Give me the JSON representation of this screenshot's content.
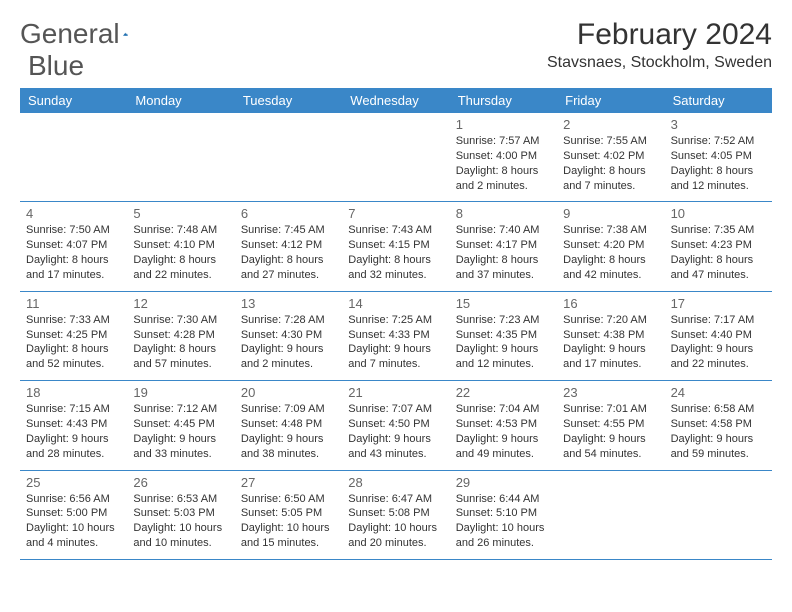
{
  "logo": {
    "word1": "General",
    "word2": "Blue"
  },
  "colors": {
    "header_bg": "#3a87c8",
    "header_text": "#ffffff",
    "divider": "#3a87c8",
    "logo_blue": "#1f6fb0",
    "text": "#333333",
    "daynum": "#666666",
    "background": "#ffffff"
  },
  "title": "February 2024",
  "location": "Stavsnaes, Stockholm, Sweden",
  "day_names": [
    "Sunday",
    "Monday",
    "Tuesday",
    "Wednesday",
    "Thursday",
    "Friday",
    "Saturday"
  ],
  "fonts": {
    "title_size": 30,
    "location_size": 16,
    "header_size": 13,
    "daynum_size": 13,
    "body_size": 11
  },
  "weeks": [
    [
      null,
      null,
      null,
      null,
      {
        "n": "1",
        "sunrise": "7:57 AM",
        "sunset": "4:00 PM",
        "dayl1": "Daylight: 8 hours",
        "dayl2": "and 2 minutes."
      },
      {
        "n": "2",
        "sunrise": "7:55 AM",
        "sunset": "4:02 PM",
        "dayl1": "Daylight: 8 hours",
        "dayl2": "and 7 minutes."
      },
      {
        "n": "3",
        "sunrise": "7:52 AM",
        "sunset": "4:05 PM",
        "dayl1": "Daylight: 8 hours",
        "dayl2": "and 12 minutes."
      }
    ],
    [
      {
        "n": "4",
        "sunrise": "7:50 AM",
        "sunset": "4:07 PM",
        "dayl1": "Daylight: 8 hours",
        "dayl2": "and 17 minutes."
      },
      {
        "n": "5",
        "sunrise": "7:48 AM",
        "sunset": "4:10 PM",
        "dayl1": "Daylight: 8 hours",
        "dayl2": "and 22 minutes."
      },
      {
        "n": "6",
        "sunrise": "7:45 AM",
        "sunset": "4:12 PM",
        "dayl1": "Daylight: 8 hours",
        "dayl2": "and 27 minutes."
      },
      {
        "n": "7",
        "sunrise": "7:43 AM",
        "sunset": "4:15 PM",
        "dayl1": "Daylight: 8 hours",
        "dayl2": "and 32 minutes."
      },
      {
        "n": "8",
        "sunrise": "7:40 AM",
        "sunset": "4:17 PM",
        "dayl1": "Daylight: 8 hours",
        "dayl2": "and 37 minutes."
      },
      {
        "n": "9",
        "sunrise": "7:38 AM",
        "sunset": "4:20 PM",
        "dayl1": "Daylight: 8 hours",
        "dayl2": "and 42 minutes."
      },
      {
        "n": "10",
        "sunrise": "7:35 AM",
        "sunset": "4:23 PM",
        "dayl1": "Daylight: 8 hours",
        "dayl2": "and 47 minutes."
      }
    ],
    [
      {
        "n": "11",
        "sunrise": "7:33 AM",
        "sunset": "4:25 PM",
        "dayl1": "Daylight: 8 hours",
        "dayl2": "and 52 minutes."
      },
      {
        "n": "12",
        "sunrise": "7:30 AM",
        "sunset": "4:28 PM",
        "dayl1": "Daylight: 8 hours",
        "dayl2": "and 57 minutes."
      },
      {
        "n": "13",
        "sunrise": "7:28 AM",
        "sunset": "4:30 PM",
        "dayl1": "Daylight: 9 hours",
        "dayl2": "and 2 minutes."
      },
      {
        "n": "14",
        "sunrise": "7:25 AM",
        "sunset": "4:33 PM",
        "dayl1": "Daylight: 9 hours",
        "dayl2": "and 7 minutes."
      },
      {
        "n": "15",
        "sunrise": "7:23 AM",
        "sunset": "4:35 PM",
        "dayl1": "Daylight: 9 hours",
        "dayl2": "and 12 minutes."
      },
      {
        "n": "16",
        "sunrise": "7:20 AM",
        "sunset": "4:38 PM",
        "dayl1": "Daylight: 9 hours",
        "dayl2": "and 17 minutes."
      },
      {
        "n": "17",
        "sunrise": "7:17 AM",
        "sunset": "4:40 PM",
        "dayl1": "Daylight: 9 hours",
        "dayl2": "and 22 minutes."
      }
    ],
    [
      {
        "n": "18",
        "sunrise": "7:15 AM",
        "sunset": "4:43 PM",
        "dayl1": "Daylight: 9 hours",
        "dayl2": "and 28 minutes."
      },
      {
        "n": "19",
        "sunrise": "7:12 AM",
        "sunset": "4:45 PM",
        "dayl1": "Daylight: 9 hours",
        "dayl2": "and 33 minutes."
      },
      {
        "n": "20",
        "sunrise": "7:09 AM",
        "sunset": "4:48 PM",
        "dayl1": "Daylight: 9 hours",
        "dayl2": "and 38 minutes."
      },
      {
        "n": "21",
        "sunrise": "7:07 AM",
        "sunset": "4:50 PM",
        "dayl1": "Daylight: 9 hours",
        "dayl2": "and 43 minutes."
      },
      {
        "n": "22",
        "sunrise": "7:04 AM",
        "sunset": "4:53 PM",
        "dayl1": "Daylight: 9 hours",
        "dayl2": "and 49 minutes."
      },
      {
        "n": "23",
        "sunrise": "7:01 AM",
        "sunset": "4:55 PM",
        "dayl1": "Daylight: 9 hours",
        "dayl2": "and 54 minutes."
      },
      {
        "n": "24",
        "sunrise": "6:58 AM",
        "sunset": "4:58 PM",
        "dayl1": "Daylight: 9 hours",
        "dayl2": "and 59 minutes."
      }
    ],
    [
      {
        "n": "25",
        "sunrise": "6:56 AM",
        "sunset": "5:00 PM",
        "dayl1": "Daylight: 10 hours",
        "dayl2": "and 4 minutes."
      },
      {
        "n": "26",
        "sunrise": "6:53 AM",
        "sunset": "5:03 PM",
        "dayl1": "Daylight: 10 hours",
        "dayl2": "and 10 minutes."
      },
      {
        "n": "27",
        "sunrise": "6:50 AM",
        "sunset": "5:05 PM",
        "dayl1": "Daylight: 10 hours",
        "dayl2": "and 15 minutes."
      },
      {
        "n": "28",
        "sunrise": "6:47 AM",
        "sunset": "5:08 PM",
        "dayl1": "Daylight: 10 hours",
        "dayl2": "and 20 minutes."
      },
      {
        "n": "29",
        "sunrise": "6:44 AM",
        "sunset": "5:10 PM",
        "dayl1": "Daylight: 10 hours",
        "dayl2": "and 26 minutes."
      },
      null,
      null
    ]
  ]
}
